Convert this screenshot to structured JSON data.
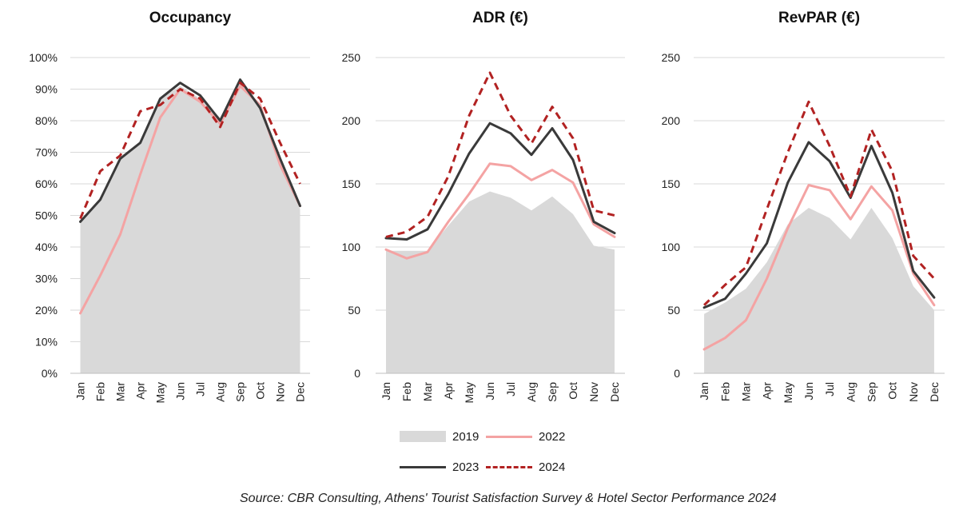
{
  "legend": {
    "s2019": "2019",
    "s2022": "2022",
    "s2023": "2023",
    "s2024": "2024"
  },
  "source_text": "Source: CBR Consulting, Athens' Tourist Satisfaction Survey & Hotel Sector Performance 2024",
  "colors": {
    "s2019": "#d9d9d9",
    "s2022": "#f4a3a3",
    "s2023": "#3a3a3a",
    "s2024": "#b22222"
  },
  "chart_data": [
    {
      "type": "line",
      "title": "Occupancy",
      "categories": [
        "Jan",
        "Feb",
        "Mar",
        "Apr",
        "May",
        "Jun",
        "Jul",
        "Aug",
        "Sep",
        "Oct",
        "Nov",
        "Dec"
      ],
      "ylim": [
        0,
        100
      ],
      "yticks": [
        "0%",
        "10%",
        "20%",
        "30%",
        "40%",
        "50%",
        "60%",
        "70%",
        "80%",
        "90%",
        "100%"
      ],
      "grid": true,
      "series": [
        {
          "name": "2019",
          "style": "area",
          "values": [
            48,
            55,
            68,
            73,
            87,
            91,
            87,
            81,
            92,
            84,
            67,
            52
          ]
        },
        {
          "name": "2022",
          "style": "line",
          "values": [
            19,
            31,
            44,
            63,
            81,
            90,
            86,
            79,
            91,
            85,
            66,
            53
          ]
        },
        {
          "name": "2023",
          "style": "line",
          "values": [
            48,
            55,
            68,
            73,
            87,
            92,
            88,
            80,
            93,
            84,
            68,
            53
          ]
        },
        {
          "name": "2024",
          "style": "dashed",
          "values": [
            49,
            64,
            69,
            83,
            85,
            90,
            87,
            78,
            92,
            87,
            73,
            60
          ]
        }
      ]
    },
    {
      "type": "line",
      "title": "ADR (€)",
      "categories": [
        "Jan",
        "Feb",
        "Mar",
        "Apr",
        "May",
        "Jun",
        "Jul",
        "Aug",
        "Sep",
        "Oct",
        "Nov",
        "Dec"
      ],
      "ylim": [
        0,
        250
      ],
      "yticks": [
        "0",
        "50",
        "100",
        "150",
        "200",
        "250"
      ],
      "grid": true,
      "series": [
        {
          "name": "2019",
          "style": "area",
          "values": [
            97,
            97,
            97,
            117,
            136,
            144,
            139,
            129,
            140,
            126,
            101,
            98
          ]
        },
        {
          "name": "2022",
          "style": "line",
          "values": [
            98,
            91,
            96,
            120,
            142,
            166,
            164,
            153,
            161,
            151,
            118,
            108
          ]
        },
        {
          "name": "2023",
          "style": "line",
          "values": [
            107,
            106,
            114,
            142,
            174,
            198,
            190,
            173,
            194,
            169,
            120,
            111
          ]
        },
        {
          "name": "2024",
          "style": "dashed",
          "values": [
            108,
            112,
            124,
            156,
            204,
            238,
            204,
            182,
            211,
            186,
            129,
            125
          ]
        }
      ]
    },
    {
      "type": "line",
      "title": "RevPAR (€)",
      "categories": [
        "Jan",
        "Feb",
        "Mar",
        "Apr",
        "May",
        "Jun",
        "Jul",
        "Aug",
        "Sep",
        "Oct",
        "Nov",
        "Dec"
      ],
      "ylim": [
        0,
        250
      ],
      "yticks": [
        "0",
        "50",
        "100",
        "150",
        "200",
        "250"
      ],
      "grid": true,
      "series": [
        {
          "name": "2019",
          "style": "area",
          "values": [
            47,
            56,
            67,
            88,
            118,
            131,
            123,
            106,
            131,
            107,
            69,
            50
          ]
        },
        {
          "name": "2022",
          "style": "line",
          "values": [
            19,
            28,
            42,
            75,
            115,
            149,
            145,
            122,
            148,
            129,
            79,
            54
          ]
        },
        {
          "name": "2023",
          "style": "line",
          "values": [
            52,
            59,
            79,
            103,
            151,
            183,
            168,
            139,
            180,
            143,
            81,
            60
          ]
        },
        {
          "name": "2024",
          "style": "dashed",
          "values": [
            54,
            70,
            84,
            130,
            175,
            215,
            180,
            140,
            193,
            160,
            93,
            75
          ]
        }
      ]
    }
  ]
}
